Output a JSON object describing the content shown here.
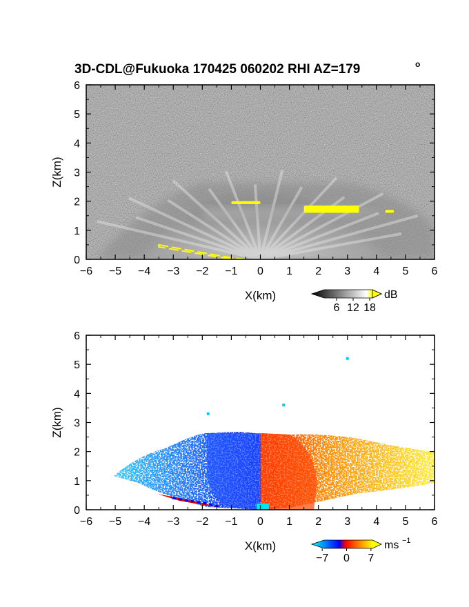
{
  "figure_title": "3D-CDL@Fukuoka 170425 060202 RHI AZ=179",
  "title_superscript": "o",
  "chart_data": [
    {
      "type": "heatmap",
      "quantity": "backscatter intensity",
      "xlabel": "X(km)",
      "ylabel": "Z(km)",
      "xlim": [
        -6,
        6
      ],
      "ylim": [
        0,
        6
      ],
      "xticks": [
        -6,
        -5,
        -4,
        -3,
        -2,
        -1,
        0,
        1,
        2,
        3,
        4,
        5,
        6
      ],
      "yticks": [
        0,
        1,
        2,
        3,
        4,
        5,
        6
      ],
      "background_noise": "gray speckle",
      "bright_features": [
        {
          "x": [
            -1.0,
            0.0
          ],
          "z": [
            1.9,
            2.0
          ]
        },
        {
          "x": [
            1.5,
            3.4
          ],
          "z": [
            1.6,
            1.85
          ]
        },
        {
          "x": [
            4.3,
            4.6
          ],
          "z": [
            1.6,
            1.7
          ]
        },
        {
          "x": [
            -3.5,
            -0.5
          ],
          "z": [
            0.0,
            0.5
          ]
        }
      ],
      "colorbar": {
        "unit": "dB",
        "ticks": [
          6,
          12,
          18
        ],
        "colors": [
          "#000000",
          "#ffffff",
          "#ffff00"
        ]
      }
    },
    {
      "type": "heatmap",
      "quantity": "Doppler velocity",
      "xlabel": "X(km)",
      "ylabel": "Z(km)",
      "xlim": [
        -6,
        6
      ],
      "ylim": [
        0,
        6
      ],
      "xticks": [
        -6,
        -5,
        -4,
        -3,
        -2,
        -1,
        0,
        1,
        2,
        3,
        4,
        5,
        6
      ],
      "yticks": [
        0,
        1,
        2,
        3,
        4,
        5,
        6
      ],
      "scatter_points": [
        {
          "x": 3.0,
          "z": 5.2
        },
        {
          "x": 0.8,
          "z": 3.6
        },
        {
          "x": -1.8,
          "z": 3.3
        }
      ],
      "colorbar": {
        "unit": "ms",
        "unit_exponent": "−1",
        "ticks": [
          -7,
          0,
          7
        ],
        "tick_labels": [
          "−7",
          "0",
          "7"
        ],
        "colors": [
          "#00ffff",
          "#0000ff",
          "#ff0000",
          "#ffff00"
        ]
      }
    }
  ]
}
